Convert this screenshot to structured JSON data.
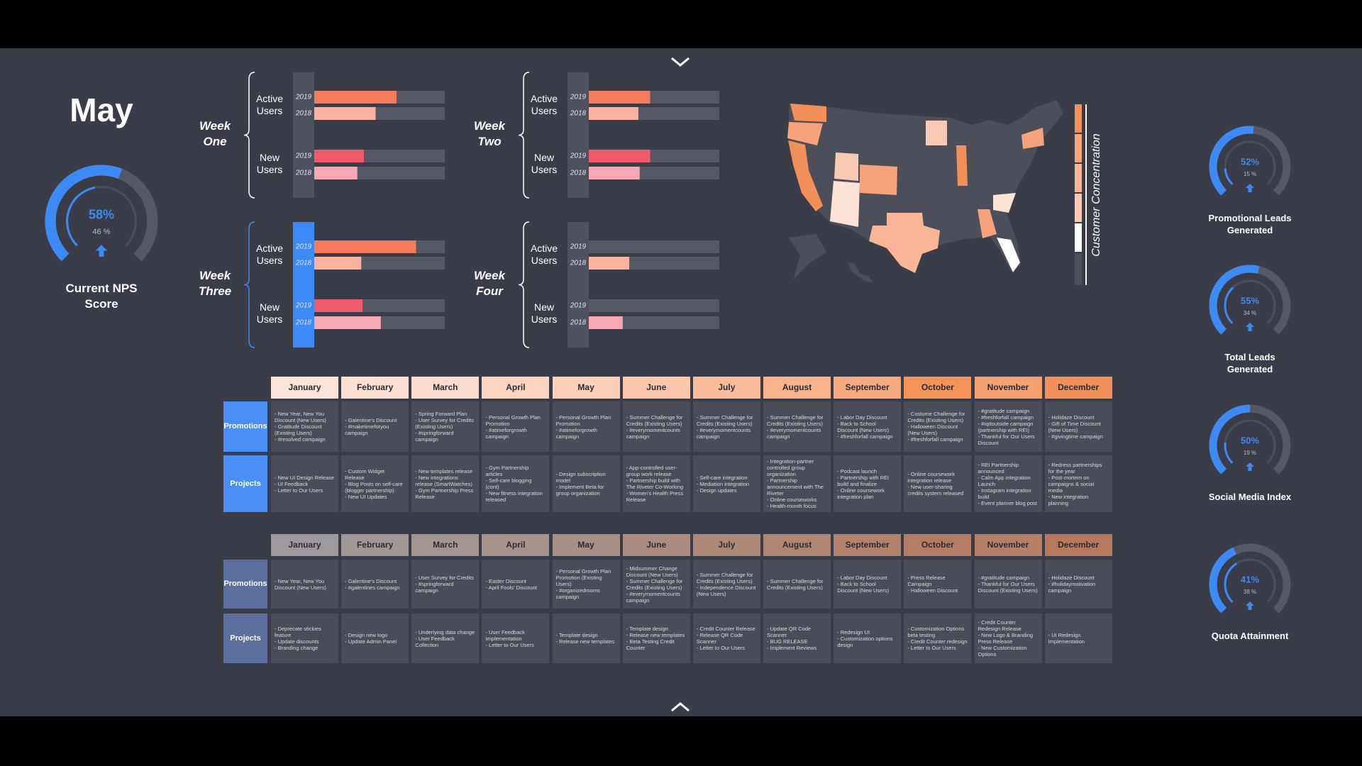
{
  "header": {
    "month": "May"
  },
  "chart_data": [
    {
      "type": "gauge",
      "title": "Current NPS Score",
      "value": 58,
      "value_label": "58%",
      "previous": 46,
      "previous_label": "46 %",
      "ylim": [
        0,
        100
      ],
      "color": "#3d8af7"
    },
    {
      "type": "gauge",
      "title": "Promotional Leads Generated",
      "value": 52,
      "value_label": "52%",
      "previous": 15,
      "previous_label": "15 %",
      "ylim": [
        0,
        100
      ],
      "color": "#3d8af7"
    },
    {
      "type": "gauge",
      "title": "Total Leads Generated",
      "value": 55,
      "value_label": "55%",
      "previous": 34,
      "previous_label": "34 %",
      "ylim": [
        0,
        100
      ],
      "color": "#3d8af7"
    },
    {
      "type": "gauge",
      "title": "Social Media Index",
      "value": 50,
      "value_label": "50%",
      "previous": 19,
      "previous_label": "19 %",
      "ylim": [
        0,
        100
      ],
      "color": "#3d8af7"
    },
    {
      "type": "gauge",
      "title": "Quota Attainment",
      "value": 41,
      "value_label": "41%",
      "previous": 38,
      "previous_label": "38 %",
      "ylim": [
        0,
        100
      ],
      "color": "#3d8af7"
    },
    {
      "type": "bar",
      "title": "Week One",
      "categories": [
        "Active Users",
        "New Users"
      ],
      "xlim": [
        0,
        100
      ],
      "highlight": false,
      "series": [
        {
          "name": "2019",
          "colors": [
            "#f47c5a",
            "#ef5b6b"
          ],
          "values": [
            63,
            38
          ]
        },
        {
          "name": "2018",
          "colors": [
            "#f9b39f",
            "#f6a9b4"
          ],
          "values": [
            47,
            33
          ]
        }
      ]
    },
    {
      "type": "bar",
      "title": "Week Two",
      "categories": [
        "Active Users",
        "New Users"
      ],
      "xlim": [
        0,
        100
      ],
      "highlight": false,
      "series": [
        {
          "name": "2019",
          "colors": [
            "#f47c5a",
            "#ef5b6b"
          ],
          "values": [
            47,
            47
          ]
        },
        {
          "name": "2018",
          "colors": [
            "#f9b39f",
            "#f6a9b4"
          ],
          "values": [
            38,
            39
          ]
        }
      ]
    },
    {
      "type": "bar",
      "title": "Week Three",
      "categories": [
        "Active Users",
        "New Users"
      ],
      "xlim": [
        0,
        100
      ],
      "highlight": true,
      "series": [
        {
          "name": "2019",
          "colors": [
            "#f47c5a",
            "#ef5b6b"
          ],
          "values": [
            78,
            37
          ]
        },
        {
          "name": "2018",
          "colors": [
            "#f9b39f",
            "#f6a9b4"
          ],
          "values": [
            36,
            51
          ]
        }
      ]
    },
    {
      "type": "bar",
      "title": "Week Four",
      "categories": [
        "Active Users",
        "New Users"
      ],
      "xlim": [
        0,
        100
      ],
      "highlight": false,
      "series": [
        {
          "name": "2019",
          "colors": [
            "#f47c5a",
            "#ef5b6b"
          ],
          "values": [
            null,
            null
          ]
        },
        {
          "name": "2018",
          "colors": [
            "#f9b39f",
            "#f6a9b4"
          ],
          "values": [
            31,
            26
          ]
        }
      ]
    }
  ],
  "map": {
    "legend_title": "Customer Concentration"
  },
  "tables": [
    {
      "columns": [
        "January",
        "February",
        "March",
        "April",
        "May",
        "June",
        "July",
        "August",
        "September",
        "October",
        "November",
        "December"
      ],
      "header_colors": [
        "#fde4d8",
        "#fde0d2",
        "#fcdccc",
        "#fcd5c2",
        "#fbcfb8",
        "#fac7ab",
        "#f9bd9c",
        "#f8b38c",
        "#f7aa7e",
        "#f4935a",
        "#f5a070",
        "#f39059"
      ],
      "rows": [
        {
          "label": "Promotions",
          "color": "#4a8ff5",
          "cells": [
            [
              "- New Year, New You Discount (New Users)",
              "- Gratitude Discount (Existing Users)",
              "- #resolved campaign"
            ],
            [
              "- Galentine's Discount",
              "- #maketimeforyou campaign"
            ],
            [
              "- Spring Forward Plan",
              "- User Survey for Credits (Existing Users)",
              "- #springforward campaign"
            ],
            [
              "- Personal Growth Plan Promotion",
              "- #atimeforgrowth campaign"
            ],
            [
              "- Personal Growth Plan Promotion",
              "- #atimeforgrowth campaign"
            ],
            [
              "- Summer Challenge for Credits (Existing Users)",
              "- #everymomentcounts campaign"
            ],
            [
              "- Summer Challenge for Credits (Existing Users)",
              "- #everymomentcounts campaign"
            ],
            [
              "- Summer Challenge for Credits (Existing Users)",
              "- #everymomentcounts campaign"
            ],
            [
              "- Labor Day Discount",
              "- Back to School Discount (New Users)",
              "- #freshforfall campaign"
            ],
            [
              "- Costume Challenge for Credits (Existing Users)",
              "- Halloween Discount (New Users)",
              "- #freshforfall campaign"
            ],
            [
              "- #gratitude campaign",
              "- #freshforfall campaign",
              "- #optoutside campaign (partnership with REI)",
              "- Thankful for Our Users Discount"
            ],
            [
              "- Holidaze Discount",
              "- Gift of Time Discount (New Users)",
              "- #givingtime campaign"
            ]
          ]
        },
        {
          "label": "Projects",
          "color": "#4a8ff5",
          "cells": [
            [
              "- New UI Design Release",
              "- UI Feedback",
              "- Letter to Our Users"
            ],
            [
              "- Custom Widget Release",
              "- Blog Posts on self-care (blogger partnership)",
              "- New UI Updates"
            ],
            [
              "- New templates release",
              "- New integrations release (SmartWatches)",
              "- Gym Partnership Press Release"
            ],
            [
              "- Gym Partnership articles",
              "- Self-care blogging (cont)",
              "- New fitness integration released"
            ],
            [
              "- Design subscription model",
              "- Implement Beta for group organization"
            ],
            [
              "- App-controlled user-group work release",
              "- Partnership build with The Riveter Co-Working",
              "- Women's Health Press Release"
            ],
            [
              "- Self-care integration",
              "- Mediation integration",
              "- Design updates"
            ],
            [
              "- Integration-partner controlled group organization",
              "- Partnership announcement with The Riveter",
              "- Online courseworks",
              "- Health-month focus"
            ],
            [
              "- Podcast launch",
              "- Partnership with REI build and finalize",
              "- Online coursework integration plan"
            ],
            [
              "- Online coursework integration release",
              "- New user-sharing credits system released"
            ],
            [
              "- REI Partnership announced",
              "- Calm App integration Launch",
              "- Instagram integration build",
              "- Event planner blog post"
            ],
            [
              "- Redress partnerships for the year",
              "- Post-mortem on campaigns & social media",
              "- New integration planning"
            ]
          ]
        }
      ]
    },
    {
      "columns": [
        "January",
        "February",
        "March",
        "April",
        "May",
        "June",
        "July",
        "August",
        "September",
        "October",
        "November",
        "December"
      ],
      "header_colors": [
        "#9e9a9c",
        "#a19896",
        "#a39690",
        "#a7938b",
        "#a98f85",
        "#ac8c7f",
        "#ae8978",
        "#b08572",
        "#b2826c",
        "#b47c63",
        "#b57f68",
        "#b8785c"
      ],
      "rows": [
        {
          "label": "Promotions",
          "color": "#5b6e9e",
          "cells": [
            [
              "- New Year, New You Discount (New Users)"
            ],
            [
              "- Galentine's Discount",
              "- #galentines campaign"
            ],
            [
              "- User Survey for Credits",
              "- #springforward campaign"
            ],
            [
              "- Easter Discount",
              "- April Fools' Discount"
            ],
            [
              "- Personal Growth Plan Promotion (Existing Users)",
              "- #organizedmoms campaign"
            ],
            [
              "- Midsummer Change Discount (New Users)",
              "- Summer Challenge for Credits (Existing Users)",
              "- #everymomentcounts campaign"
            ],
            [
              "- Summer Challenge for Credits (Existing Users)",
              "- Independence Discount (New Users)"
            ],
            [
              "- Summer Challenge for Credits (Existing Users)"
            ],
            [
              "- Labor Day Discount",
              "- Back to School Discount (New Users)"
            ],
            [
              "- Press Release Campaign",
              "- Halloween Discount"
            ],
            [
              "- #gratitude campaign",
              "- Thankful for Our Users Discount (Existing Users)"
            ],
            [
              "- Holidaze Discount",
              "- #holidaymotivation campaign"
            ]
          ]
        },
        {
          "label": "Projects",
          "color": "#5b6e9e",
          "cells": [
            [
              "- Deprecate stickies feature",
              "- Update discounts",
              "- Branding change"
            ],
            [
              "- Design new logo",
              "- Update Admin Panel"
            ],
            [
              "- Underlying data change",
              "- User Feedback Collection"
            ],
            [
              "- User Feedback Implementation",
              "- Letter to Our Users"
            ],
            [
              "- Template design",
              "- Release new templates"
            ],
            [
              "- Template design",
              "- Release new templates",
              "- Beta Testing Credit Counter"
            ],
            [
              "- Credit Counter Release",
              "- Release QR Code Scanner",
              "- Letter to Our Users"
            ],
            [
              "- Update QR Code Scanner",
              "- BUG RELEASE",
              "- Implement Reviews"
            ],
            [
              "- Redesign UI",
              "- Customization options design"
            ],
            [
              "- Customization Options beta testing",
              "- Credit Counter redesign",
              "- Letter to Our Users"
            ],
            [
              "- Credit Counter Redesign Release",
              "- New Logo & Branding Press Release",
              "- New Customization Options"
            ],
            [
              "- UI Redesign Implementation"
            ]
          ]
        }
      ]
    }
  ]
}
